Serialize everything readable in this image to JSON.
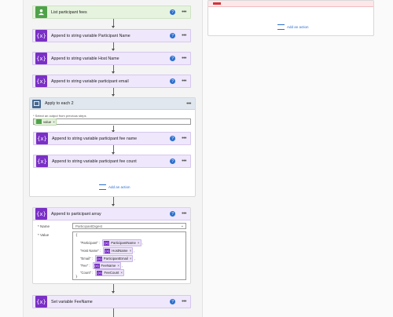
{
  "top_action": {
    "label": "List participant fees"
  },
  "actions": [
    {
      "label": "Append to string variable Participant Name"
    },
    {
      "label": "Append to string variable Host Name"
    },
    {
      "label": "Append to string variable participant email"
    }
  ],
  "loop": {
    "title": "Apply to each 2",
    "select_label": "* Select an output from previous steps",
    "token": "value",
    "inner": [
      {
        "label": "Append to string variable participant fee name"
      },
      {
        "label": "Append to string variable participant fee count"
      }
    ],
    "add_action": "Add an action"
  },
  "append_array": {
    "title": "Append to participant array",
    "name_label": "* Name",
    "name_value": "ParticipantDigest",
    "value_label": "* Value",
    "open_brace": "{",
    "close_brace": "}",
    "rows": [
      {
        "key": "\"Participant\" :",
        "token": "ParticipantName",
        "suffix": ","
      },
      {
        "key": "\"Host Name\" :",
        "token": "HostName",
        "suffix": ","
      },
      {
        "key": "\"Email\" :",
        "token": "ParticipantEmail",
        "suffix": ","
      },
      {
        "key": "\"Fee\" :",
        "token": "FeeName",
        "suffix": ","
      },
      {
        "key": "\"Count\" :",
        "token": "FeeCount",
        "suffix": ""
      }
    ]
  },
  "bottom_action": {
    "label": "Set variable FeeName"
  },
  "right_panel": {
    "add_action": "Add an action"
  },
  "icons": {
    "variable": "{x}",
    "help": "?"
  },
  "colors": {
    "variable_accent": "#7a2fc6",
    "trigger_green": "#4fa24a",
    "error_red": "#d13438"
  }
}
